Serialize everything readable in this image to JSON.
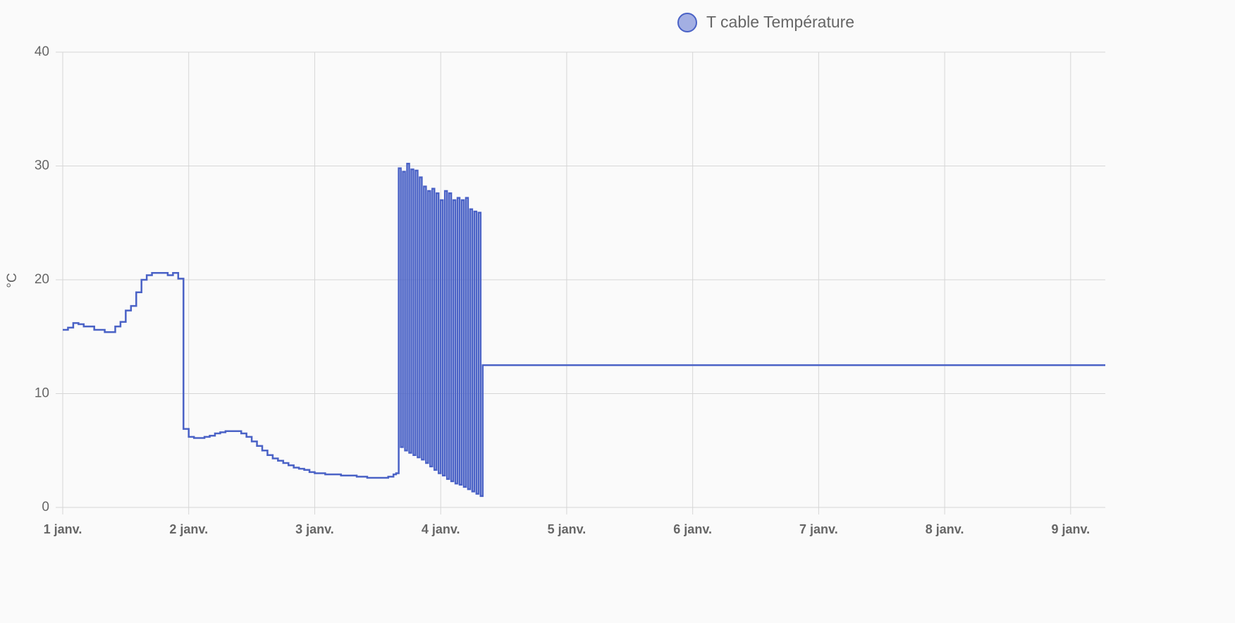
{
  "chart_data": {
    "type": "step-line",
    "y_label": "°C",
    "x": [
      0,
      1,
      2,
      3,
      4,
      5,
      6,
      7,
      8,
      9,
      10,
      11,
      12,
      13,
      14,
      15,
      16,
      17,
      18,
      19,
      20,
      21,
      22,
      23,
      24,
      25,
      26,
      27,
      28,
      29,
      30,
      31,
      32,
      33,
      34,
      35,
      36,
      37,
      38,
      39,
      40,
      41,
      42,
      43,
      44,
      45,
      46,
      47,
      48,
      49,
      50,
      51,
      52,
      53,
      54,
      55,
      56,
      57,
      58,
      59,
      60,
      61,
      62,
      63,
      63.5,
      64,
      64.4,
      64.8,
      65.2,
      65.6,
      66,
      66.4,
      66.8,
      67.2,
      67.6,
      68,
      68.4,
      68.8,
      69.2,
      69.6,
      70,
      70.4,
      70.8,
      71.2,
      71.6,
      72,
      72.4,
      72.8,
      73.2,
      73.6,
      74,
      74.4,
      74.8,
      75.2,
      75.6,
      76,
      76.4,
      76.8,
      77.2,
      77.6,
      78,
      78.4,
      78.8,
      79.2,
      79.6,
      80,
      198.6
    ],
    "series": [
      {
        "name": "T cable Température",
        "color": "#4a62c6",
        "values": [
          15.6,
          15.8,
          16.2,
          16.1,
          15.9,
          15.9,
          15.6,
          15.6,
          15.4,
          15.4,
          15.9,
          16.3,
          17.3,
          17.7,
          18.9,
          20.0,
          20.4,
          20.6,
          20.6,
          20.6,
          20.4,
          20.6,
          20.1,
          6.9,
          6.2,
          6.1,
          6.1,
          6.2,
          6.3,
          6.5,
          6.6,
          6.7,
          6.7,
          6.7,
          6.5,
          6.2,
          5.8,
          5.4,
          5.0,
          4.6,
          4.3,
          4.1,
          3.9,
          3.7,
          3.5,
          3.4,
          3.3,
          3.1,
          3.0,
          3.0,
          2.9,
          2.9,
          2.9,
          2.8,
          2.8,
          2.8,
          2.7,
          2.7,
          2.6,
          2.6,
          2.6,
          2.6,
          2.7,
          2.9,
          3.0,
          29.8,
          5.3,
          29.5,
          5.0,
          30.2,
          4.8,
          29.7,
          4.6,
          29.6,
          4.4,
          29.0,
          4.2,
          28.2,
          3.9,
          27.8,
          3.6,
          28.0,
          3.3,
          27.6,
          3.0,
          27.0,
          2.8,
          27.8,
          2.5,
          27.6,
          2.3,
          27.0,
          2.1,
          27.2,
          2.0,
          27.0,
          1.8,
          27.2,
          1.6,
          26.2,
          1.4,
          26.0,
          1.2,
          25.9,
          1.0,
          12.5,
          12.5
        ]
      }
    ],
    "xlim": [
      0,
      198.6
    ],
    "xticks": [
      {
        "value": 0,
        "label": "1 janv."
      },
      {
        "value": 24,
        "label": "2 janv."
      },
      {
        "value": 48,
        "label": "3 janv."
      },
      {
        "value": 72,
        "label": "4 janv."
      },
      {
        "value": 96,
        "label": "5 janv."
      },
      {
        "value": 120,
        "label": "6 janv."
      },
      {
        "value": 144,
        "label": "7 janv."
      },
      {
        "value": 168,
        "label": "8 janv."
      },
      {
        "value": 192,
        "label": "9 janv."
      }
    ],
    "ylim": [
      0,
      40
    ],
    "yticks": [
      0,
      10,
      20,
      30,
      40
    ],
    "grid": true
  }
}
